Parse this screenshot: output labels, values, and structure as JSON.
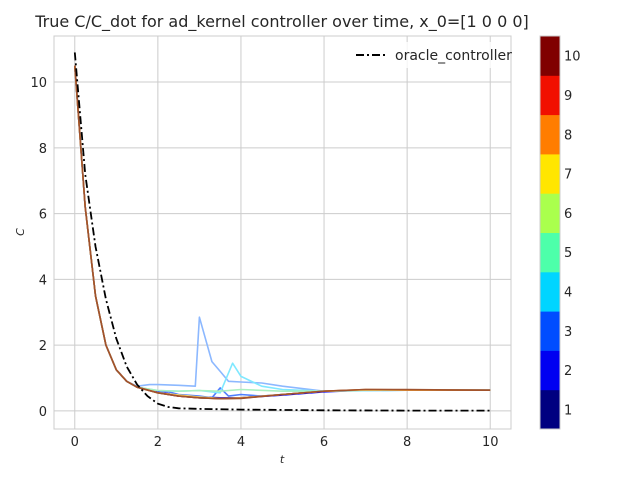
{
  "chart_data": {
    "type": "line",
    "title": "True C/C_dot for ad_kernel controller over time, x_0=[1 0 0 0]",
    "xlabel": "t",
    "ylabel": "C",
    "xlim": [
      -0.5,
      10.5
    ],
    "ylim": [
      -0.55,
      11.4
    ],
    "xticks": [
      0,
      2,
      4,
      6,
      8,
      10
    ],
    "yticks": [
      0,
      2,
      4,
      6,
      8,
      10
    ],
    "grid": true,
    "legend": {
      "placement": "top-right",
      "entries": [
        "oracle_controller"
      ]
    },
    "oracle_series": {
      "name": "oracle_controller",
      "color": "#000000",
      "style": "dash-dot",
      "x": [
        0,
        0.25,
        0.5,
        0.75,
        1.0,
        1.25,
        1.5,
        1.75,
        2.0,
        2.25,
        2.5,
        3.0,
        4.0,
        6.0,
        8.0,
        10.0
      ],
      "y": [
        10.9,
        7.2,
        5.0,
        3.4,
        2.2,
        1.35,
        0.8,
        0.45,
        0.22,
        0.12,
        0.08,
        0.06,
        0.04,
        0.02,
        0.01,
        0.01
      ]
    },
    "series": [
      {
        "color": "#00007f",
        "x": [
          0,
          0.25,
          0.5,
          0.75,
          1.0,
          1.25,
          1.5,
          2.0,
          2.5,
          3.0,
          3.5,
          4.0,
          5.0,
          6.0,
          7.0,
          8.0,
          9.0,
          10.0
        ],
        "y": [
          10.5,
          6.2,
          3.5,
          2.0,
          1.25,
          0.9,
          0.72,
          0.55,
          0.45,
          0.4,
          0.38,
          0.4,
          0.5,
          0.6,
          0.64,
          0.63,
          0.63,
          0.63
        ]
      },
      {
        "color": "#0000ff",
        "x": [
          0,
          0.25,
          0.5,
          0.75,
          1.0,
          1.25,
          1.5,
          2.0,
          2.5,
          3.0,
          3.5,
          4.0,
          5.0,
          6.0,
          7.0,
          8.0,
          9.0,
          10.0
        ],
        "y": [
          10.5,
          6.2,
          3.5,
          2.0,
          1.25,
          0.9,
          0.72,
          0.6,
          0.45,
          0.42,
          0.4,
          0.4,
          0.48,
          0.58,
          0.63,
          0.63,
          0.63,
          0.63
        ]
      },
      {
        "color": "#4f7fff",
        "x": [
          0,
          0.25,
          0.5,
          0.75,
          1.0,
          1.25,
          1.5,
          1.8,
          2.0,
          2.2,
          2.5,
          3.0,
          3.3,
          3.5,
          3.7,
          4.0,
          4.5,
          5.0,
          6.0,
          7.0,
          8.0,
          10.0
        ],
        "y": [
          10.5,
          6.2,
          3.5,
          2.0,
          1.25,
          0.9,
          0.72,
          0.65,
          0.55,
          0.6,
          0.5,
          0.45,
          0.4,
          0.7,
          0.45,
          0.5,
          0.45,
          0.5,
          0.6,
          0.63,
          0.63,
          0.63
        ]
      },
      {
        "color": "#8cb8ff",
        "x": [
          0,
          0.25,
          0.5,
          0.75,
          1.0,
          1.25,
          1.5,
          1.8,
          2.0,
          2.5,
          2.9,
          3.0,
          3.3,
          3.5,
          3.7,
          4.0,
          4.5,
          5.0,
          6.0,
          8.0,
          10.0
        ],
        "y": [
          10.5,
          6.2,
          3.5,
          2.0,
          1.25,
          0.9,
          0.75,
          0.8,
          0.8,
          0.78,
          0.75,
          2.85,
          1.5,
          1.2,
          0.9,
          0.88,
          0.85,
          0.75,
          0.6,
          0.63,
          0.63
        ]
      },
      {
        "color": "#7fe8ff",
        "x": [
          0,
          0.25,
          0.5,
          0.75,
          1.0,
          1.25,
          1.5,
          2.0,
          2.5,
          3.0,
          3.5,
          3.8,
          4.0,
          4.5,
          5.0,
          6.0,
          8.0,
          10.0
        ],
        "y": [
          10.5,
          6.2,
          3.5,
          2.0,
          1.25,
          0.9,
          0.72,
          0.62,
          0.6,
          0.62,
          0.55,
          1.45,
          1.05,
          0.75,
          0.65,
          0.6,
          0.63,
          0.63
        ]
      },
      {
        "color": "#aaf0c0",
        "x": [
          0,
          0.25,
          0.5,
          0.75,
          1.0,
          1.25,
          1.5,
          2.0,
          2.5,
          3.0,
          3.5,
          4.0,
          5.0,
          6.0,
          7.0,
          8.0,
          10.0
        ],
        "y": [
          10.5,
          6.2,
          3.5,
          2.0,
          1.25,
          0.9,
          0.72,
          0.62,
          0.6,
          0.62,
          0.6,
          0.65,
          0.6,
          0.6,
          0.63,
          0.63,
          0.63
        ]
      },
      {
        "color": "#ffd966",
        "x": [
          0,
          0.25,
          0.5,
          0.75,
          1.0,
          1.25,
          1.5,
          2.0,
          2.5,
          3.0,
          3.5,
          4.0,
          5.0,
          6.0,
          7.0,
          8.0,
          10.0
        ],
        "y": [
          10.5,
          6.2,
          3.5,
          2.0,
          1.25,
          0.9,
          0.72,
          0.55,
          0.48,
          0.42,
          0.38,
          0.4,
          0.5,
          0.6,
          0.64,
          0.63,
          0.63
        ]
      },
      {
        "color": "#d2691e",
        "x": [
          0,
          0.25,
          0.5,
          0.75,
          1.0,
          1.25,
          1.5,
          2.0,
          2.5,
          3.0,
          3.5,
          4.0,
          5.0,
          6.0,
          7.0,
          8.0,
          10.0
        ],
        "y": [
          10.5,
          6.2,
          3.5,
          2.0,
          1.25,
          0.9,
          0.72,
          0.55,
          0.45,
          0.4,
          0.37,
          0.39,
          0.5,
          0.6,
          0.65,
          0.64,
          0.63
        ]
      },
      {
        "color": "#a0522d",
        "x": [
          0,
          0.25,
          0.5,
          0.75,
          1.0,
          1.25,
          1.5,
          2.0,
          2.5,
          3.0,
          3.5,
          4.0,
          5.0,
          6.0,
          7.0,
          8.0,
          9.0,
          10.0
        ],
        "y": [
          10.5,
          6.2,
          3.5,
          2.0,
          1.25,
          0.9,
          0.72,
          0.55,
          0.45,
          0.4,
          0.37,
          0.38,
          0.5,
          0.6,
          0.65,
          0.65,
          0.64,
          0.63
        ]
      }
    ],
    "colorbar": {
      "labels": [
        "1",
        "2",
        "3",
        "4",
        "5",
        "6",
        "7",
        "8",
        "9",
        "10"
      ],
      "colors": [
        "#000080",
        "#0000f1",
        "#004dff",
        "#00d5ff",
        "#4dffaa",
        "#aaff4d",
        "#ffe600",
        "#ff7d00",
        "#f10f00",
        "#800000"
      ]
    }
  }
}
